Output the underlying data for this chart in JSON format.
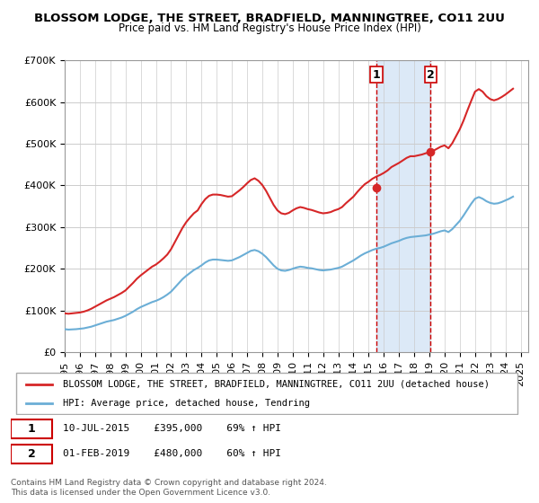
{
  "title1": "BLOSSOM LODGE, THE STREET, BRADFIELD, MANNINGTREE, CO11 2UU",
  "title2": "Price paid vs. HM Land Registry's House Price Index (HPI)",
  "ylabel_ticks": [
    "£0",
    "£100K",
    "£200K",
    "£300K",
    "£400K",
    "£500K",
    "£600K",
    "£700K"
  ],
  "ylim": [
    0,
    700000
  ],
  "xlim_start": 1995.0,
  "xlim_end": 2025.5,
  "sale1_date": 2015.52,
  "sale1_price": 395000,
  "sale1_label": "1",
  "sale1_text": "10-JUL-2015    £395,000    69% ↑ HPI",
  "sale2_date": 2019.08,
  "sale2_price": 480000,
  "sale2_label": "2",
  "sale2_text": "01-FEB-2019    £480,000    60% ↑ HPI",
  "hpi_line_color": "#6baed6",
  "property_line_color": "#d62728",
  "sale_marker_color": "#d62728",
  "highlight_color": "#dce9f7",
  "grid_color": "#cccccc",
  "legend_property": "BLOSSOM LODGE, THE STREET, BRADFIELD, MANNINGTREE, CO11 2UU (detached house)",
  "legend_hpi": "HPI: Average price, detached house, Tendring",
  "footnote": "Contains HM Land Registry data © Crown copyright and database right 2024.\nThis data is licensed under the Open Government Licence v3.0.",
  "hpi_data_x": [
    1995.0,
    1995.25,
    1995.5,
    1995.75,
    1996.0,
    1996.25,
    1996.5,
    1996.75,
    1997.0,
    1997.25,
    1997.5,
    1997.75,
    1998.0,
    1998.25,
    1998.5,
    1998.75,
    1999.0,
    1999.25,
    1999.5,
    1999.75,
    2000.0,
    2000.25,
    2000.5,
    2000.75,
    2001.0,
    2001.25,
    2001.5,
    2001.75,
    2002.0,
    2002.25,
    2002.5,
    2002.75,
    2003.0,
    2003.25,
    2003.5,
    2003.75,
    2004.0,
    2004.25,
    2004.5,
    2004.75,
    2005.0,
    2005.25,
    2005.5,
    2005.75,
    2006.0,
    2006.25,
    2006.5,
    2006.75,
    2007.0,
    2007.25,
    2007.5,
    2007.75,
    2008.0,
    2008.25,
    2008.5,
    2008.75,
    2009.0,
    2009.25,
    2009.5,
    2009.75,
    2010.0,
    2010.25,
    2010.5,
    2010.75,
    2011.0,
    2011.25,
    2011.5,
    2011.75,
    2012.0,
    2012.25,
    2012.5,
    2012.75,
    2013.0,
    2013.25,
    2013.5,
    2013.75,
    2014.0,
    2014.25,
    2014.5,
    2014.75,
    2015.0,
    2015.25,
    2015.5,
    2015.75,
    2016.0,
    2016.25,
    2016.5,
    2016.75,
    2017.0,
    2017.25,
    2017.5,
    2017.75,
    2018.0,
    2018.25,
    2018.5,
    2018.75,
    2019.0,
    2019.25,
    2019.5,
    2019.75,
    2020.0,
    2020.25,
    2020.5,
    2020.75,
    2021.0,
    2021.25,
    2021.5,
    2021.75,
    2022.0,
    2022.25,
    2022.5,
    2022.75,
    2023.0,
    2023.25,
    2023.5,
    2023.75,
    2024.0,
    2024.25,
    2024.5
  ],
  "hpi_data_y": [
    55000,
    54000,
    54500,
    55000,
    56000,
    57000,
    59000,
    61000,
    64000,
    67000,
    70000,
    73000,
    75000,
    77000,
    80000,
    83000,
    87000,
    92000,
    97000,
    103000,
    108000,
    112000,
    116000,
    120000,
    123000,
    127000,
    132000,
    138000,
    145000,
    155000,
    165000,
    175000,
    183000,
    190000,
    197000,
    202000,
    208000,
    215000,
    220000,
    222000,
    222000,
    221000,
    220000,
    219000,
    220000,
    224000,
    228000,
    233000,
    238000,
    243000,
    245000,
    242000,
    236000,
    228000,
    218000,
    208000,
    200000,
    196000,
    195000,
    197000,
    200000,
    203000,
    205000,
    204000,
    202000,
    201000,
    199000,
    197000,
    196000,
    197000,
    198000,
    200000,
    202000,
    205000,
    210000,
    215000,
    220000,
    226000,
    232000,
    237000,
    241000,
    245000,
    248000,
    250000,
    253000,
    257000,
    261000,
    264000,
    267000,
    271000,
    274000,
    276000,
    277000,
    278000,
    279000,
    280000,
    282000,
    284000,
    287000,
    290000,
    292000,
    288000,
    295000,
    305000,
    315000,
    328000,
    342000,
    356000,
    368000,
    372000,
    368000,
    362000,
    358000,
    356000,
    357000,
    360000,
    364000,
    368000,
    373000
  ],
  "property_data_x": [
    1995.0,
    1995.25,
    1995.5,
    1995.75,
    1996.0,
    1996.25,
    1996.5,
    1996.75,
    1997.0,
    1997.25,
    1997.5,
    1997.75,
    1998.0,
    1998.25,
    1998.5,
    1998.75,
    1999.0,
    1999.25,
    1999.5,
    1999.75,
    2000.0,
    2000.25,
    2000.5,
    2000.75,
    2001.0,
    2001.25,
    2001.5,
    2001.75,
    2002.0,
    2002.25,
    2002.5,
    2002.75,
    2003.0,
    2003.25,
    2003.5,
    2003.75,
    2004.0,
    2004.25,
    2004.5,
    2004.75,
    2005.0,
    2005.25,
    2005.5,
    2005.75,
    2006.0,
    2006.25,
    2006.5,
    2006.75,
    2007.0,
    2007.25,
    2007.5,
    2007.75,
    2008.0,
    2008.25,
    2008.5,
    2008.75,
    2009.0,
    2009.25,
    2009.5,
    2009.75,
    2010.0,
    2010.25,
    2010.5,
    2010.75,
    2011.0,
    2011.25,
    2011.5,
    2011.75,
    2012.0,
    2012.25,
    2012.5,
    2012.75,
    2013.0,
    2013.25,
    2013.5,
    2013.75,
    2014.0,
    2014.25,
    2014.5,
    2014.75,
    2015.0,
    2015.25,
    2015.5,
    2015.75,
    2016.0,
    2016.25,
    2016.5,
    2016.75,
    2017.0,
    2017.25,
    2017.5,
    2017.75,
    2018.0,
    2018.25,
    2018.5,
    2018.75,
    2019.0,
    2019.25,
    2019.5,
    2019.75,
    2020.0,
    2020.25,
    2020.5,
    2020.75,
    2021.0,
    2021.25,
    2021.5,
    2021.75,
    2022.0,
    2022.25,
    2022.5,
    2022.75,
    2023.0,
    2023.25,
    2023.5,
    2023.75,
    2024.0,
    2024.25,
    2024.5
  ],
  "property_data_y": [
    93000,
    92000,
    93000,
    94000,
    95000,
    97000,
    100000,
    104000,
    109000,
    114000,
    119000,
    124000,
    128000,
    132000,
    137000,
    142000,
    148000,
    157000,
    166000,
    176000,
    184000,
    191000,
    198000,
    205000,
    210000,
    217000,
    225000,
    234000,
    247000,
    264000,
    281000,
    298000,
    312000,
    323000,
    333000,
    340000,
    355000,
    367000,
    375000,
    378000,
    378000,
    377000,
    375000,
    373000,
    374000,
    381000,
    388000,
    396000,
    405000,
    413000,
    417000,
    411000,
    401000,
    387000,
    370000,
    353000,
    340000,
    333000,
    331000,
    334000,
    340000,
    345000,
    348000,
    346000,
    343000,
    341000,
    338000,
    335000,
    333000,
    334000,
    336000,
    340000,
    343000,
    348000,
    357000,
    365000,
    373000,
    384000,
    394000,
    403000,
    409000,
    416000,
    421000,
    425000,
    430000,
    436000,
    444000,
    449000,
    454000,
    460000,
    466000,
    470000,
    470000,
    472000,
    474000,
    477000,
    480000,
    483000,
    488000,
    493000,
    496000,
    489000,
    501000,
    518000,
    535000,
    556000,
    580000,
    603000,
    625000,
    631000,
    625000,
    614000,
    607000,
    604000,
    607000,
    612000,
    618000,
    625000,
    632000
  ]
}
